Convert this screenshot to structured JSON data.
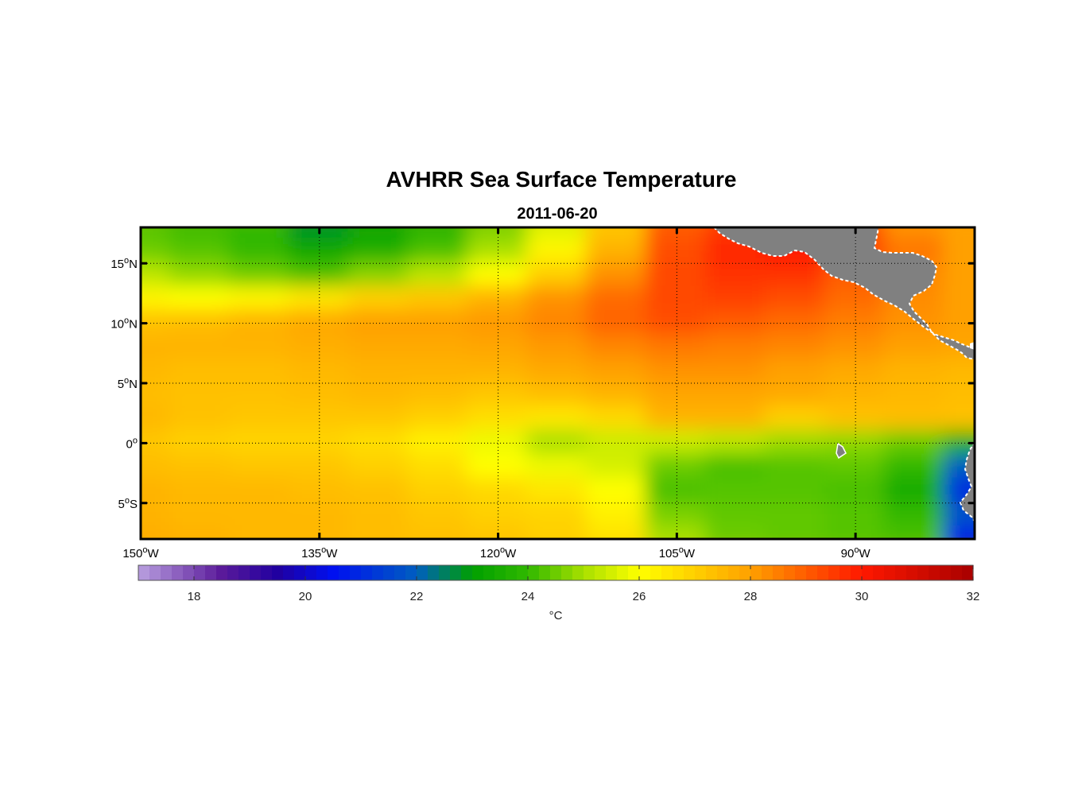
{
  "chart_data": {
    "type": "heatmap",
    "title": "AVHRR Sea Surface Temperature",
    "subtitle": "2011-06-20",
    "map": {
      "lon_range": [
        -150,
        -80
      ],
      "lat_range": [
        -8,
        18
      ],
      "lon_ticks": [
        {
          "value": -150,
          "label": "150",
          "suffix": "W"
        },
        {
          "value": -135,
          "label": "135",
          "suffix": "W"
        },
        {
          "value": -120,
          "label": "120",
          "suffix": "W"
        },
        {
          "value": -105,
          "label": "105",
          "suffix": "W"
        },
        {
          "value": -90,
          "label": "90",
          "suffix": "W"
        }
      ],
      "lat_ticks": [
        {
          "value": 15,
          "label": "15",
          "suffix": "N"
        },
        {
          "value": 10,
          "label": "10",
          "suffix": "N"
        },
        {
          "value": 5,
          "label": "5",
          "suffix": "N"
        },
        {
          "value": 0,
          "label": "0",
          "suffix": ""
        },
        {
          "value": -5,
          "label": "5",
          "suffix": "S"
        }
      ],
      "degree_symbol": "o",
      "grid": true,
      "grid_style": "dotted",
      "land_color": "#808080",
      "coast_color": "#ffffff"
    },
    "colorbar": {
      "label": "°C",
      "range": [
        17,
        32
      ],
      "ticks": [
        18,
        20,
        22,
        24,
        26,
        28,
        30,
        32
      ],
      "stops": [
        {
          "value": 17,
          "color": "#b9a0e0"
        },
        {
          "value": 18.5,
          "color": "#5a1a9a"
        },
        {
          "value": 19.5,
          "color": "#2000a0"
        },
        {
          "value": 20.5,
          "color": "#0010f0"
        },
        {
          "value": 22,
          "color": "#005ec0"
        },
        {
          "value": 23,
          "color": "#00a000"
        },
        {
          "value": 24,
          "color": "#30b800"
        },
        {
          "value": 25,
          "color": "#a8e000"
        },
        {
          "value": 26,
          "color": "#ffff00"
        },
        {
          "value": 28,
          "color": "#ffa000"
        },
        {
          "value": 30,
          "color": "#ff1800"
        },
        {
          "value": 32,
          "color": "#a80000"
        }
      ]
    },
    "sst_grid": {
      "lats": [
        18,
        16,
        14,
        12,
        10,
        8,
        6,
        4,
        2,
        0,
        -2,
        -4,
        -6,
        -8
      ],
      "lons": [
        -150,
        -145,
        -140,
        -135,
        -130,
        -125,
        -120,
        -115,
        -110,
        -105,
        -100,
        -95,
        -90,
        -85,
        -80
      ],
      "values": [
        [
          24.3,
          24.1,
          24.0,
          22.8,
          23.2,
          23.8,
          24.6,
          25.6,
          27.2,
          29.0,
          29.5,
          29.6,
          29.2,
          28.2,
          28.0
        ],
        [
          24.5,
          24.3,
          24.0,
          23.3,
          23.6,
          24.2,
          25.0,
          26.2,
          27.6,
          29.2,
          29.8,
          30.0,
          29.4,
          28.6,
          28.0
        ],
        [
          25.2,
          24.8,
          24.5,
          24.2,
          24.7,
          25.2,
          26.0,
          27.0,
          28.2,
          29.3,
          29.6,
          29.6,
          29.0,
          28.4,
          28.0
        ],
        [
          26.2,
          26.0,
          26.2,
          26.5,
          27.0,
          27.2,
          27.6,
          28.2,
          28.8,
          29.3,
          29.4,
          29.2,
          28.8,
          28.3,
          28.0
        ],
        [
          27.3,
          27.4,
          27.6,
          27.8,
          28.0,
          28.0,
          28.1,
          28.4,
          28.9,
          29.2,
          29.0,
          28.8,
          28.5,
          28.2,
          28.0
        ],
        [
          27.6,
          27.6,
          27.6,
          27.7,
          27.8,
          27.8,
          27.9,
          28.1,
          28.4,
          28.6,
          28.5,
          28.4,
          28.2,
          28.0,
          27.9
        ],
        [
          27.5,
          27.4,
          27.4,
          27.5,
          27.6,
          27.6,
          27.6,
          27.8,
          28.0,
          28.2,
          28.2,
          28.0,
          27.8,
          27.6,
          27.5
        ],
        [
          27.4,
          27.3,
          27.3,
          27.4,
          27.5,
          27.4,
          27.2,
          27.4,
          27.6,
          27.9,
          27.9,
          27.8,
          27.6,
          27.5,
          27.4
        ],
        [
          27.5,
          27.3,
          27.2,
          27.2,
          27.2,
          27.0,
          26.7,
          26.5,
          26.8,
          27.6,
          27.6,
          27.0,
          27.3,
          27.4,
          27.3
        ],
        [
          27.2,
          27.0,
          26.9,
          26.9,
          26.7,
          26.3,
          25.8,
          25.0,
          25.4,
          25.4,
          25.2,
          24.9,
          24.8,
          24.5,
          23.8
        ],
        [
          27.4,
          27.3,
          27.2,
          27.2,
          27.0,
          26.7,
          26.0,
          25.8,
          25.5,
          24.5,
          24.2,
          24.3,
          24.4,
          24.0,
          22.0
        ],
        [
          27.6,
          27.5,
          27.5,
          27.4,
          27.3,
          27.0,
          26.8,
          26.5,
          26.0,
          24.2,
          24.3,
          24.3,
          24.2,
          23.5,
          21.0
        ],
        [
          27.6,
          27.5,
          27.5,
          27.5,
          27.4,
          27.2,
          27.0,
          26.9,
          26.3,
          24.6,
          24.4,
          24.4,
          24.3,
          24.0,
          21.8
        ],
        [
          27.7,
          27.6,
          27.5,
          27.5,
          27.4,
          27.3,
          27.2,
          27.0,
          26.6,
          25.0,
          24.5,
          24.4,
          24.3,
          24.2,
          20.8
        ]
      ]
    }
  }
}
